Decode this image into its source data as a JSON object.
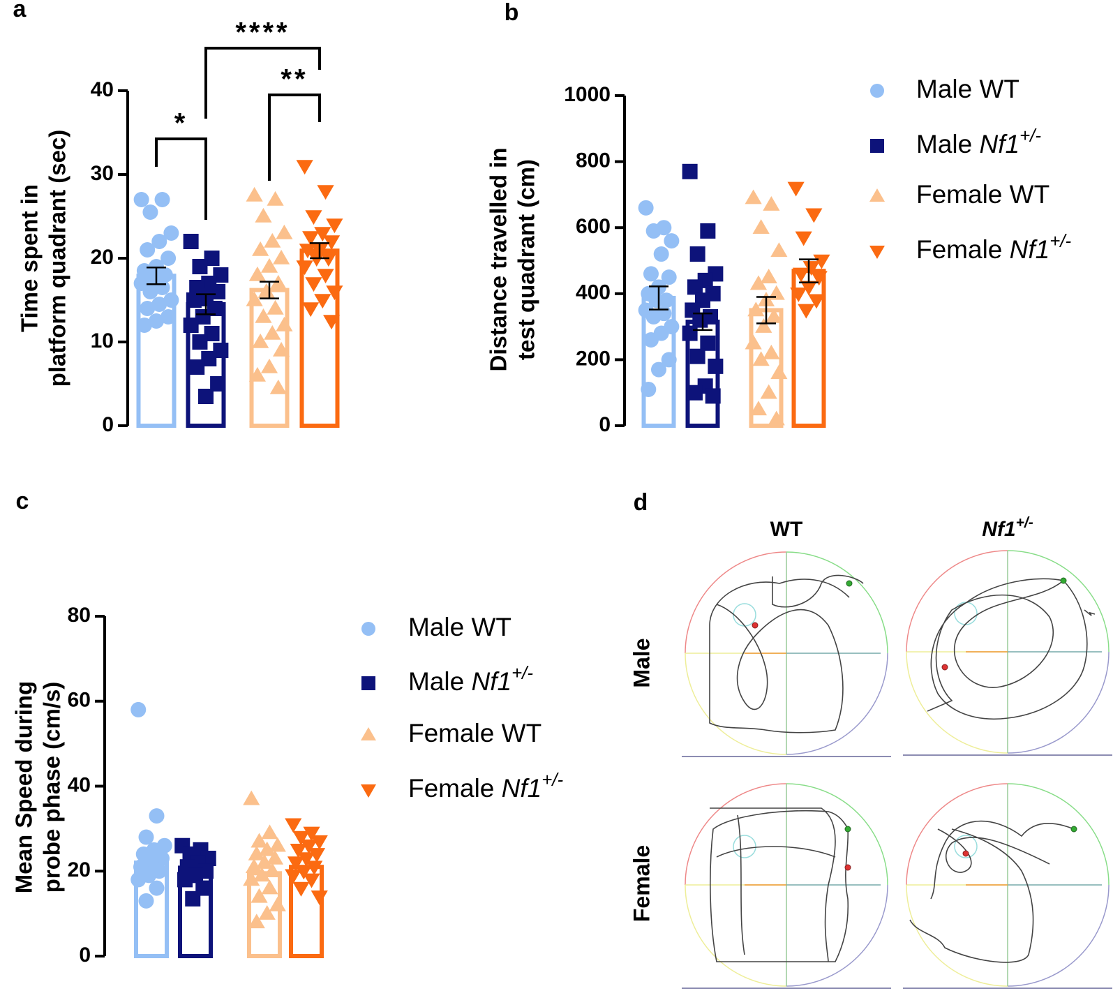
{
  "chart_data": [
    {
      "type": "bar",
      "panel": "a",
      "ylabel": [
        "Time spent in",
        "platform quadrant (sec)"
      ],
      "ylim": [
        0,
        40
      ],
      "yticks": [
        0,
        10,
        20,
        30,
        40
      ],
      "series": [
        {
          "name": "Male WT",
          "color": "#94bff5",
          "marker": "circle",
          "value": 17.9,
          "error": 1.0,
          "points": [
            27,
            27,
            25.5,
            23,
            22,
            21,
            20,
            19,
            18.5,
            18,
            17.5,
            17,
            16.5,
            16,
            15,
            14.5,
            14,
            13,
            12.5,
            12
          ]
        },
        {
          "name": "Male Nf1+/-",
          "color": "#0d137a",
          "marker": "square",
          "value": 14.5,
          "error": 1.2,
          "points": [
            22,
            20,
            19,
            18,
            17,
            16.5,
            16,
            15.5,
            15,
            14,
            13,
            12,
            11,
            10,
            9,
            8,
            7,
            5,
            3.5
          ]
        },
        {
          "name": "Female WT",
          "color": "#fbc08c",
          "marker": "triangle-up",
          "value": 16.2,
          "error": 1.0,
          "points": [
            27.5,
            27,
            25,
            23,
            22,
            21,
            20,
            19,
            18,
            17,
            16,
            15,
            14,
            13,
            12,
            11,
            10,
            9,
            7,
            6,
            4.5
          ]
        },
        {
          "name": "Female Nf1+/-",
          "color": "#fb6a11",
          "marker": "triangle-down",
          "value": 20.9,
          "error": 0.9,
          "points": [
            31,
            28,
            25,
            24,
            23,
            22.5,
            22,
            21,
            21,
            20,
            20,
            19,
            18,
            17,
            16,
            15,
            14,
            12.5
          ]
        }
      ],
      "annotations": [
        {
          "text": "*",
          "from": "Male WT",
          "to": "Male Nf1+/-"
        },
        {
          "text": "**",
          "from": "Female WT",
          "to": "Female Nf1+/-"
        },
        {
          "text": "****",
          "from": "Male Nf1+/-",
          "to": "Female Nf1+/-"
        }
      ]
    },
    {
      "type": "bar",
      "panel": "b",
      "ylabel": [
        "Distance travelled in",
        "test quadrant (cm)"
      ],
      "ylim": [
        0,
        1000
      ],
      "yticks": [
        0,
        200,
        400,
        600,
        800,
        1000
      ],
      "legend": true,
      "series": [
        {
          "name": "Male WT",
          "color": "#94bff5",
          "marker": "circle",
          "value": 387,
          "error": 35,
          "points": [
            660,
            600,
            590,
            560,
            520,
            460,
            450,
            420,
            400,
            380,
            380,
            350,
            340,
            330,
            300,
            280,
            260,
            200,
            170,
            110
          ]
        },
        {
          "name": "Male Nf1+/-",
          "color": "#0d137a",
          "marker": "square",
          "value": 315,
          "error": 25,
          "points": [
            770,
            590,
            520,
            460,
            440,
            420,
            400,
            380,
            350,
            330,
            320,
            280,
            250,
            210,
            180,
            120,
            100,
            90
          ]
        },
        {
          "name": "Female WT",
          "color": "#fbc08c",
          "marker": "triangle-up",
          "value": 350,
          "error": 40,
          "points": [
            690,
            670,
            600,
            530,
            450,
            430,
            400,
            380,
            350,
            330,
            300,
            250,
            220,
            200,
            160,
            100,
            50,
            20
          ]
        },
        {
          "name": "Female Nf1+/-",
          "color": "#fb6a11",
          "marker": "triangle-down",
          "value": 469,
          "error": 35,
          "points": [
            720,
            640,
            570,
            500,
            480,
            460,
            450,
            420,
            400,
            380,
            350
          ]
        }
      ]
    },
    {
      "type": "bar",
      "panel": "c",
      "ylabel": [
        "Mean Speed during",
        "probe phase (cm/s)"
      ],
      "ylim": [
        0,
        80
      ],
      "yticks": [
        0,
        20,
        40,
        60,
        80
      ],
      "legend": true,
      "series": [
        {
          "name": "Male WT",
          "color": "#94bff5",
          "marker": "circle",
          "value": 22,
          "points": [
            58,
            33,
            28,
            26,
            25,
            24,
            23,
            22,
            21,
            20,
            19,
            18,
            16,
            13
          ]
        },
        {
          "name": "Male Nf1+/-",
          "color": "#0d137a",
          "marker": "square",
          "value": 20.8,
          "points": [
            26,
            25,
            24,
            23,
            22,
            21,
            20,
            19,
            18,
            16,
            13.5
          ]
        },
        {
          "name": "Female WT",
          "color": "#fbc08c",
          "marker": "triangle-up",
          "value": 19.5,
          "points": [
            37,
            29,
            27,
            26,
            25,
            24,
            23,
            22,
            21,
            20,
            19,
            18,
            16,
            14,
            12,
            10,
            8
          ]
        },
        {
          "name": "Female Nf1+/-",
          "color": "#fb6a11",
          "marker": "triangle-down",
          "value": 21,
          "points": [
            31,
            29,
            28,
            27,
            26,
            25,
            24,
            23,
            22,
            21,
            20,
            19,
            18,
            16,
            14
          ]
        }
      ]
    }
  ],
  "panel_d": {
    "label": "d",
    "columns": [
      "WT",
      "Nf1+/-"
    ],
    "rows": [
      "Male",
      "Female"
    ]
  }
}
